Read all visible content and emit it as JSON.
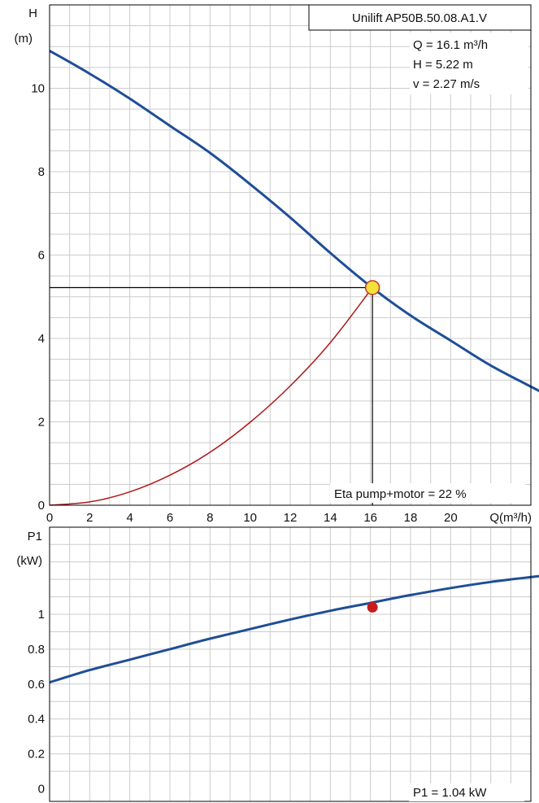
{
  "chart_data": [
    {
      "type": "line",
      "title": "Unilift AP50B.50.08.A1.V",
      "xlabel": "Q(m³/h)",
      "ylabel_line1": "H",
      "ylabel_line2": "(m)",
      "xlim": [
        0,
        24
      ],
      "ylim": [
        0,
        12
      ],
      "x_ticks": [
        0,
        2,
        4,
        6,
        8,
        10,
        12,
        14,
        16,
        18,
        20
      ],
      "y_ticks": [
        0,
        2,
        4,
        6,
        8,
        10
      ],
      "grid": true,
      "series": [
        {
          "key": "pump-curve",
          "color": "#1f4e96",
          "x": [
            0,
            2,
            4,
            6,
            8,
            10,
            12,
            14,
            16,
            18,
            20,
            22,
            24.5
          ],
          "y": [
            10.9,
            10.35,
            9.75,
            9.1,
            8.45,
            7.7,
            6.9,
            6.05,
            5.25,
            4.55,
            3.95,
            3.35,
            2.72
          ]
        },
        {
          "key": "system-curve",
          "color": "#b01818",
          "x": [
            0,
            2,
            4,
            6,
            8,
            10,
            12,
            14,
            16.1
          ],
          "y": [
            0,
            0.08,
            0.32,
            0.72,
            1.27,
            1.99,
            2.86,
            3.9,
            5.22
          ]
        }
      ],
      "duty_point": {
        "x": 16.1,
        "y": 5.22,
        "color": "#f5e03a"
      },
      "info": {
        "q": "Q = 16.1 m³/h",
        "h": "H = 5.22 m",
        "v": "v = 2.27 m/s",
        "eta": "Eta pump+motor = 22 %"
      }
    },
    {
      "type": "line",
      "ylabel_line1": "P1",
      "ylabel_line2": "(kW)",
      "xlim": [
        0,
        24
      ],
      "ylim": [
        0,
        1.4
      ],
      "y_ticks": [
        0,
        0.2,
        0.4,
        0.6,
        0.8,
        1
      ],
      "y_tick_labels": [
        "0",
        "0.2",
        "0.4",
        "0.6",
        "0.8",
        "1"
      ],
      "grid": true,
      "series": [
        {
          "key": "power-curve",
          "color": "#1f4e96",
          "x": [
            0,
            2,
            4,
            6,
            8,
            10,
            12,
            14,
            16,
            18,
            20,
            22,
            24.5
          ],
          "y": [
            0.61,
            0.68,
            0.74,
            0.8,
            0.86,
            0.915,
            0.97,
            1.02,
            1.065,
            1.11,
            1.15,
            1.185,
            1.22
          ]
        }
      ],
      "duty_point": {
        "x": 16.1,
        "y": 1.04,
        "color": "#c81a1a"
      },
      "info": {
        "p1": "P1 = 1.04 kW"
      }
    }
  ]
}
